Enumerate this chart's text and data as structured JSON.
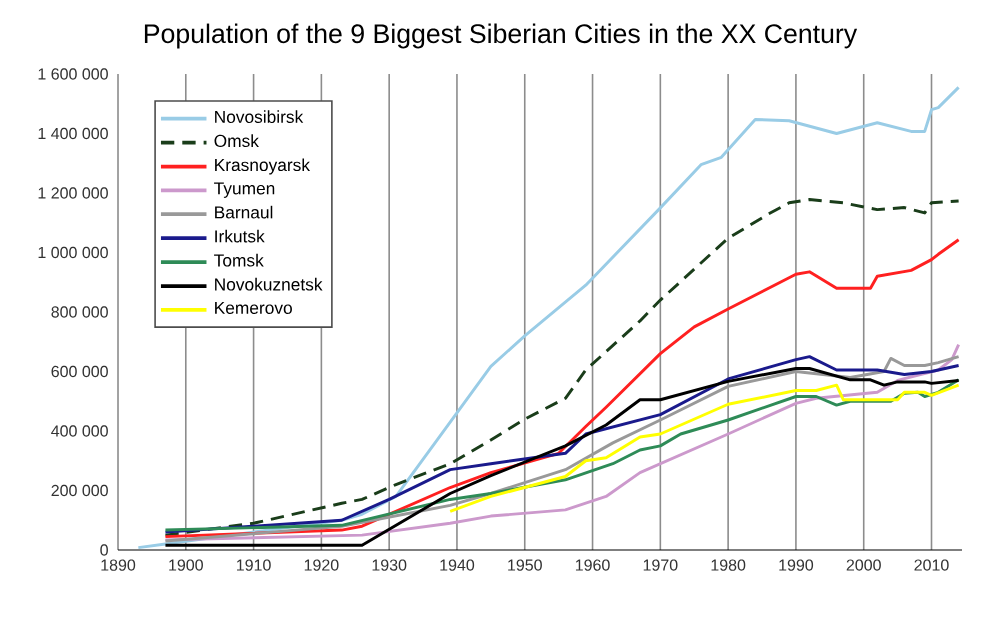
{
  "chart_data": {
    "type": "line",
    "title": "Population of the 9 Biggest Siberian Cities in the XX Century",
    "xlim": [
      1890,
      2014.5
    ],
    "xticks": [
      1890,
      1900,
      1910,
      1920,
      1930,
      1940,
      1950,
      1960,
      1970,
      1980,
      1990,
      2000,
      2010
    ],
    "ylim": [
      0,
      1600000
    ],
    "yticks": [
      {
        "value": 0,
        "label": "0"
      },
      {
        "value": 200000,
        "label": "200 000"
      },
      {
        "value": 400000,
        "label": "400 000"
      },
      {
        "value": 600000,
        "label": "600 000"
      },
      {
        "value": 800000,
        "label": "800 000"
      },
      {
        "value": 1000000,
        "label": "1 000 000"
      },
      {
        "value": 1200000,
        "label": "1 200 000"
      },
      {
        "value": 1400000,
        "label": "1 400 000"
      },
      {
        "value": 1600000,
        "label": "1 600 000"
      }
    ],
    "grid": "x",
    "legend": "top left",
    "line_style": "solid",
    "series": [
      {
        "name": "Novosibirsk",
        "color": "#99cce6",
        "x": [
          1893,
          1897,
          1910,
          1923,
          1926,
          1931,
          1939,
          1945,
          1950,
          1959,
          1970,
          1976,
          1979,
          1984,
          1989,
          1996,
          2002,
          2007,
          2009,
          2010,
          2011,
          2014
        ],
        "values": [
          8000,
          20000,
          60000,
          100000,
          120000,
          180000,
          430000,
          617000,
          720000,
          890000,
          1150000,
          1295000,
          1320000,
          1447000,
          1443000,
          1400000,
          1436000,
          1407000,
          1407000,
          1480000,
          1487000,
          1555000
        ]
      },
      {
        "name": "Omsk",
        "color": "#1a3d1a",
        "line_style": "dashed",
        "x": [
          1897,
          1910,
          1923,
          1926,
          1931,
          1939,
          1945,
          1950,
          1956,
          1959,
          1967,
          1970,
          1980,
          1986,
          1989,
          1992,
          1997,
          2002,
          2006,
          2009,
          2010,
          2014
        ],
        "values": [
          50000,
          90000,
          157000,
          170000,
          220000,
          290000,
          370000,
          440000,
          510000,
          605000,
          770000,
          840000,
          1048000,
          1130000,
          1167000,
          1178000,
          1167000,
          1144000,
          1151000,
          1133000,
          1167000,
          1173000
        ]
      },
      {
        "name": "Krasnoyarsk",
        "color": "#ff2020",
        "x": [
          1897,
          1923,
          1926,
          1939,
          1945,
          1955,
          1959,
          1962,
          1970,
          1975,
          1980,
          1990,
          1992,
          1996,
          2001,
          2002,
          2007,
          2010,
          2011,
          2014
        ],
        "values": [
          45000,
          67000,
          80000,
          210000,
          260000,
          325000,
          415000,
          480000,
          660000,
          750000,
          810000,
          927000,
          935000,
          880000,
          880000,
          920000,
          940000,
          976000,
          994000,
          1043000
        ]
      },
      {
        "name": "Tyumen",
        "color": "#cc99cc",
        "x": [
          1897,
          1926,
          1939,
          1945,
          1956,
          1962,
          1967,
          1980,
          1990,
          1993,
          2002,
          2005,
          2011,
          2013,
          2014
        ],
        "values": [
          34000,
          50000,
          90000,
          114000,
          135000,
          180000,
          260000,
          390000,
          493000,
          510000,
          530000,
          570000,
          605000,
          640000,
          690000
        ]
      },
      {
        "name": "Barnaul",
        "color": "#999999",
        "x": [
          1897,
          1923,
          1939,
          1945,
          1956,
          1963,
          1970,
          1980,
          1990,
          1998,
          2003,
          2004,
          2006,
          2009,
          2011,
          2014
        ],
        "values": [
          30000,
          80000,
          150000,
          190000,
          270000,
          360000,
          437000,
          550000,
          600000,
          580000,
          600000,
          644000,
          620000,
          620000,
          630000,
          650000
        ]
      },
      {
        "name": "Irkutsk",
        "color": "#1a1a8c",
        "x": [
          1897,
          1923,
          1930,
          1939,
          1945,
          1956,
          1959,
          1970,
          1980,
          1990,
          1992,
          1996,
          2002,
          2006,
          2010,
          2014
        ],
        "values": [
          60000,
          100000,
          170000,
          270000,
          290000,
          325000,
          390000,
          455000,
          575000,
          640000,
          650000,
          605000,
          605000,
          590000,
          600000,
          620000
        ]
      },
      {
        "name": "Tomsk",
        "color": "#2e8b57",
        "x": [
          1897,
          1923,
          1939,
          1945,
          1956,
          1963,
          1967,
          1970,
          1973,
          1980,
          1990,
          1993,
          1996,
          1998,
          2004,
          2006,
          2008,
          2009,
          2011,
          2014
        ],
        "values": [
          67000,
          83000,
          170000,
          190000,
          236000,
          290000,
          336000,
          350000,
          390000,
          437000,
          516000,
          516000,
          487000,
          500000,
          500000,
          527000,
          530000,
          516000,
          530000,
          572000
        ]
      },
      {
        "name": "Novokuznetsk",
        "color": "#000000",
        "x": [
          1897,
          1926,
          1939,
          1945,
          1956,
          1962,
          1967,
          1970,
          1980,
          1990,
          1992,
          1998,
          2001,
          2003,
          2005,
          2009,
          2010,
          2014
        ],
        "values": [
          16000,
          16000,
          190000,
          250000,
          350000,
          420000,
          505000,
          505000,
          567000,
          610000,
          610000,
          572000,
          572000,
          554000,
          565000,
          565000,
          560000,
          570000
        ]
      },
      {
        "name": "Kemerovo",
        "color": "#ffff00",
        "x": [
          1939,
          1945,
          1956,
          1959,
          1962,
          1967,
          1970,
          1980,
          1990,
          1993,
          1996,
          1997,
          2005,
          2006,
          2009,
          2010,
          2014
        ],
        "values": [
          130000,
          180000,
          247000,
          300000,
          310000,
          380000,
          390000,
          490000,
          536000,
          536000,
          554000,
          505000,
          505000,
          530000,
          530000,
          520000,
          554000
        ]
      }
    ]
  }
}
